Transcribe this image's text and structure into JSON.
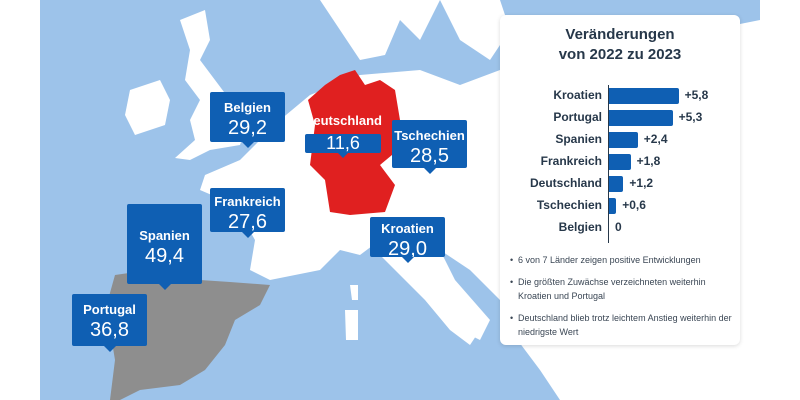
{
  "colors": {
    "sea": "#9dc3ea",
    "land": "#ffffff",
    "highlight_low": "#e02020",
    "highlight_grey": "#8e8e8e",
    "callout": "#0f5fb3",
    "bar": "#0f5fb3"
  },
  "map": {
    "callouts": [
      {
        "name": "Belgien",
        "value": "29,2"
      },
      {
        "name": "Tschechien",
        "value": "28,5"
      },
      {
        "name": "Frankreich",
        "value": "27,6"
      },
      {
        "name": "Spanien",
        "value": "49,4"
      },
      {
        "name": "Kroatien",
        "value": "29,0"
      },
      {
        "name": "Portugal",
        "value": "36,8"
      }
    ],
    "germany": {
      "name": "Deutschland",
      "value": "11,6"
    }
  },
  "panel": {
    "title_line1": "Veränderungen",
    "title_line2": "von 2022 zu 2023",
    "bullets": [
      "6 von 7 Länder zeigen positive Entwicklungen",
      "Die größten Zuwächse verzeichneten weiterhin Kroatien und Portugal",
      "Deutschland blieb trotz leichtem Anstieg weiterhin der niedrigste Wert"
    ]
  },
  "chart_data": {
    "type": "bar",
    "orientation": "horizontal",
    "title": "Veränderungen von 2022 zu 2023",
    "categories": [
      "Kroatien",
      "Portugal",
      "Spanien",
      "Frankreich",
      "Deutschland",
      "Tschechien",
      "Belgien"
    ],
    "values": [
      5.8,
      5.3,
      2.4,
      1.8,
      1.2,
      0.6,
      0
    ],
    "labels": [
      "+5,8",
      "+5,3",
      "+2,4",
      "+1,8",
      "+1,2",
      "+0,6",
      "0"
    ]
  }
}
